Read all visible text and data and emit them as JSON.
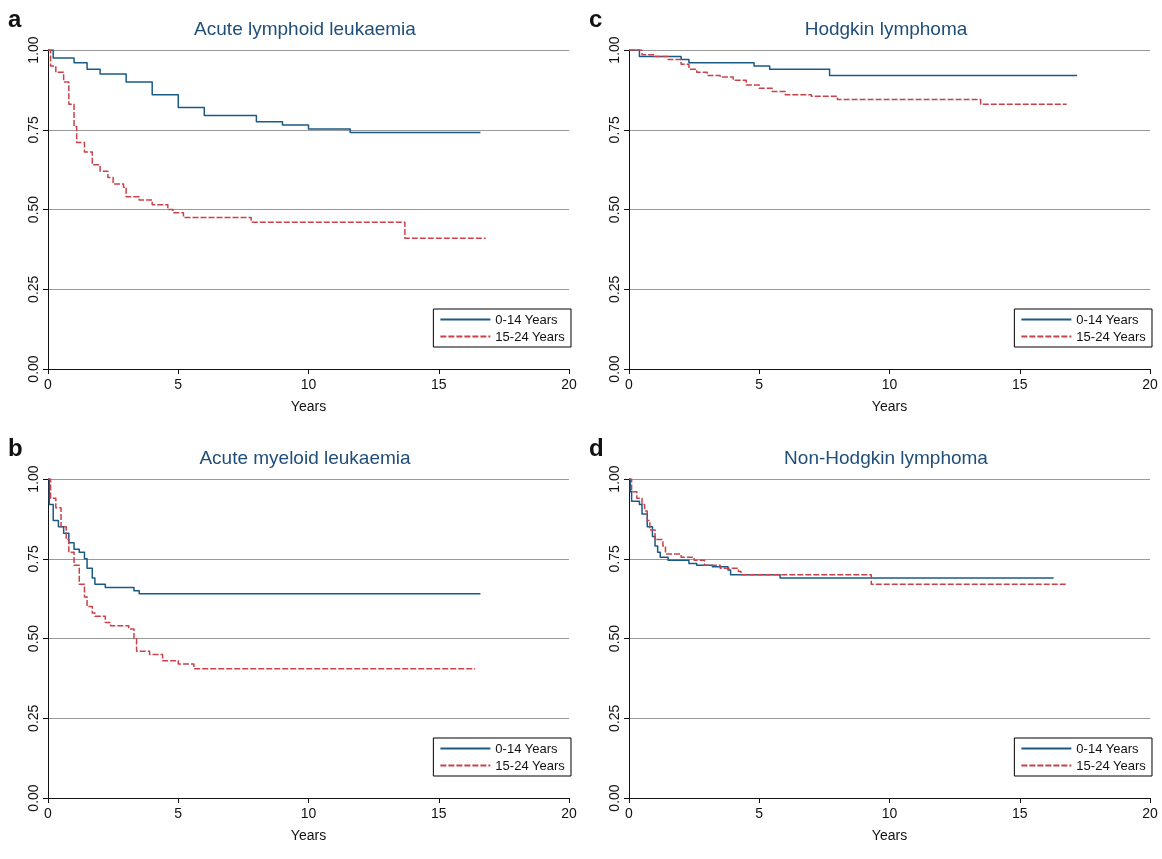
{
  "chart_data": [
    {
      "type": "step",
      "title": "Acute lymphoid leukaemia",
      "xlabel": "Years",
      "annotations": [
        "a"
      ],
      "xlim": [
        0,
        20
      ],
      "xticks": [
        0,
        5,
        10,
        15,
        20
      ],
      "ylim": [
        0,
        1
      ],
      "yticks": [
        {
          "value": 0,
          "label": "0.00"
        },
        {
          "value": 0.25,
          "label": "0.25"
        },
        {
          "value": 0.5,
          "label": "0.50"
        },
        {
          "value": 0.75,
          "label": "0.75"
        },
        {
          "value": 1,
          "label": "1.00"
        }
      ],
      "grid": "y",
      "legend": "bottom right",
      "series": [
        {
          "name": "0-14 Years",
          "color": "#1a5a87",
          "line_style": "solid",
          "x": [
            0,
            0.2,
            1,
            1.5,
            2,
            3,
            4,
            5,
            6,
            8,
            9,
            10,
            11.6,
            16.6
          ],
          "values": [
            1,
            0.975,
            0.96,
            0.94,
            0.925,
            0.9,
            0.86,
            0.82,
            0.795,
            0.775,
            0.765,
            0.752,
            0.741,
            0.741
          ]
        },
        {
          "name": "15-24 Years",
          "color": "#c8424b",
          "line_style": "dashed",
          "x": [
            0,
            0.1,
            0.3,
            0.6,
            0.8,
            1,
            1.1,
            1.4,
            1.7,
            2,
            2.3,
            2.5,
            2.9,
            3,
            3.5,
            4,
            4.6,
            4.8,
            5.2,
            7.8,
            13.7,
            16.8
          ],
          "values": [
            1,
            0.95,
            0.93,
            0.9,
            0.83,
            0.76,
            0.71,
            0.68,
            0.64,
            0.62,
            0.6,
            0.58,
            0.57,
            0.54,
            0.53,
            0.515,
            0.5,
            0.49,
            0.475,
            0.46,
            0.41,
            0.41
          ]
        }
      ]
    },
    {
      "type": "step",
      "title": "Hodgkin lymphoma",
      "xlabel": "Years",
      "annotations": [
        "c"
      ],
      "xlim": [
        0,
        20
      ],
      "xticks": [
        0,
        5,
        10,
        15,
        20
      ],
      "ylim": [
        0,
        1
      ],
      "yticks": [
        {
          "value": 0,
          "label": "0.00"
        },
        {
          "value": 0.25,
          "label": "0.25"
        },
        {
          "value": 0.5,
          "label": "0.50"
        },
        {
          "value": 0.75,
          "label": "0.75"
        },
        {
          "value": 1,
          "label": "1.00"
        }
      ],
      "grid": "y",
      "legend": "bottom right",
      "series": [
        {
          "name": "0-14 Years",
          "color": "#1a5a87",
          "line_style": "solid",
          "x": [
            0,
            0.4,
            2,
            2.3,
            4.8,
            5.4,
            7.7,
            17.2
          ],
          "values": [
            1,
            0.98,
            0.97,
            0.96,
            0.95,
            0.94,
            0.92,
            0.92
          ]
        },
        {
          "name": "15-24 Years",
          "color": "#c8424b",
          "line_style": "dashed",
          "x": [
            0,
            0.5,
            1,
            1.5,
            2,
            2.3,
            2.6,
            3,
            3.5,
            4,
            4.5,
            5,
            5.5,
            6,
            7,
            8,
            13.5,
            16.8
          ],
          "values": [
            1,
            0.985,
            0.98,
            0.97,
            0.955,
            0.94,
            0.93,
            0.92,
            0.915,
            0.905,
            0.89,
            0.88,
            0.87,
            0.86,
            0.855,
            0.845,
            0.83,
            0.83
          ]
        }
      ]
    },
    {
      "type": "step",
      "title": "Acute myeloid leukaemia",
      "xlabel": "Years",
      "annotations": [
        "b"
      ],
      "xlim": [
        0,
        20
      ],
      "xticks": [
        0,
        5,
        10,
        15,
        20
      ],
      "ylim": [
        0,
        1
      ],
      "yticks": [
        {
          "value": 0,
          "label": "0.00"
        },
        {
          "value": 0.25,
          "label": "0.25"
        },
        {
          "value": 0.5,
          "label": "0.50"
        },
        {
          "value": 0.75,
          "label": "0.75"
        },
        {
          "value": 1,
          "label": "1.00"
        }
      ],
      "grid": "y",
      "legend": "bottom right",
      "series": [
        {
          "name": "0-14 Years",
          "color": "#1a5a87",
          "line_style": "solid",
          "x": [
            0,
            0.05,
            0.2,
            0.4,
            0.6,
            0.8,
            1,
            1.2,
            1.4,
            1.5,
            1.7,
            1.8,
            2.2,
            3.3,
            3.5,
            16.6
          ],
          "values": [
            1,
            0.92,
            0.87,
            0.85,
            0.83,
            0.8,
            0.78,
            0.77,
            0.75,
            0.72,
            0.69,
            0.67,
            0.66,
            0.65,
            0.64,
            0.64
          ]
        },
        {
          "name": "15-24 Years",
          "color": "#c8424b",
          "line_style": "dashed",
          "x": [
            0,
            0.1,
            0.3,
            0.5,
            0.7,
            0.8,
            1,
            1.2,
            1.4,
            1.5,
            1.7,
            1.8,
            2.2,
            2.4,
            3.1,
            3.3,
            3.4,
            3.9,
            4.4,
            5,
            5.6,
            16.4
          ],
          "values": [
            1,
            0.94,
            0.91,
            0.85,
            0.81,
            0.77,
            0.73,
            0.67,
            0.63,
            0.6,
            0.58,
            0.57,
            0.55,
            0.54,
            0.53,
            0.5,
            0.46,
            0.45,
            0.43,
            0.42,
            0.405,
            0.405
          ]
        }
      ]
    },
    {
      "type": "step",
      "title": "Non-Hodgkin lymphoma",
      "xlabel": "Years",
      "annotations": [
        "d"
      ],
      "xlim": [
        0,
        20
      ],
      "xticks": [
        0,
        5,
        10,
        15,
        20
      ],
      "ylim": [
        0,
        1
      ],
      "yticks": [
        {
          "value": 0,
          "label": "0.00"
        },
        {
          "value": 0.25,
          "label": "0.25"
        },
        {
          "value": 0.5,
          "label": "0.50"
        },
        {
          "value": 0.75,
          "label": "0.75"
        },
        {
          "value": 1,
          "label": "1.00"
        }
      ],
      "grid": "y",
      "legend": "bottom right",
      "series": [
        {
          "name": "0-14 Years",
          "color": "#1a5a87",
          "line_style": "solid",
          "x": [
            0,
            0.05,
            0.1,
            0.4,
            0.5,
            0.7,
            0.9,
            1,
            1.1,
            1.2,
            1.5,
            2.3,
            2.6,
            3.2,
            3.8,
            3.9,
            5.8,
            16.3
          ],
          "values": [
            1,
            0.96,
            0.93,
            0.92,
            0.89,
            0.85,
            0.82,
            0.79,
            0.77,
            0.755,
            0.745,
            0.735,
            0.73,
            0.725,
            0.715,
            0.7,
            0.69,
            0.69
          ]
        },
        {
          "name": "15-24 Years",
          "color": "#c8424b",
          "line_style": "dashed",
          "x": [
            0,
            0.1,
            0.3,
            0.5,
            0.6,
            0.7,
            0.8,
            1,
            1.3,
            1.4,
            2,
            2.5,
            2.9,
            3.5,
            4.2,
            4.3,
            9.3,
            16.8
          ],
          "values": [
            1,
            0.96,
            0.94,
            0.92,
            0.9,
            0.87,
            0.84,
            0.81,
            0.79,
            0.765,
            0.755,
            0.745,
            0.73,
            0.72,
            0.71,
            0.7,
            0.67,
            0.67
          ]
        }
      ]
    }
  ]
}
